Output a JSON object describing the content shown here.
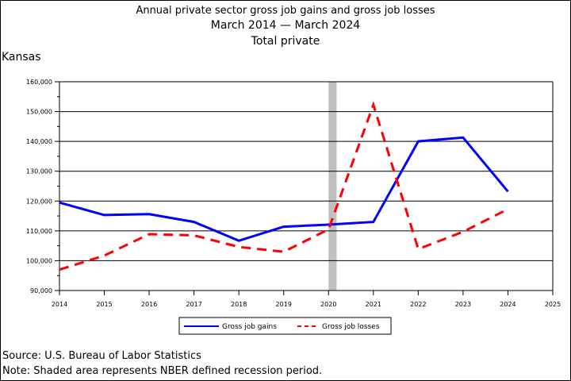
{
  "header": {
    "title": "Annual private sector gross job gains and gross job losses",
    "period": "March 2014 — March 2024",
    "subtitle": "Total private",
    "region": "Kansas"
  },
  "footer": {
    "source": "Source: U.S. Bureau of Labor Statistics",
    "note": "Note: Shaded area represents NBER defined recession period."
  },
  "chart_data": {
    "type": "line",
    "title": "Annual private sector gross job gains and gross job losses",
    "subtitle": "March 2014 — March 2024 / Total private",
    "x": [
      2014,
      2015,
      2016,
      2017,
      2018,
      2019,
      2020,
      2021,
      2022,
      2023,
      2024
    ],
    "x_ticks": [
      "2014",
      "2015",
      "2016",
      "2017",
      "2018",
      "2019",
      "2020",
      "2021",
      "2022",
      "2023",
      "2024",
      "2025"
    ],
    "xlim": [
      2014,
      2025
    ],
    "ylim": [
      90000,
      160000
    ],
    "y_ticks": [
      "90,000",
      "100,000",
      "110,000",
      "120,000",
      "130,000",
      "140,000",
      "150,000",
      "160,000"
    ],
    "grid": "horizontal",
    "legend": "bottom",
    "recession": {
      "start": 2020.0,
      "end": 2020.18
    },
    "series": [
      {
        "name": "Gross job gains",
        "color": "#0000ff",
        "dash": "solid",
        "values": [
          119500,
          115300,
          115600,
          113000,
          106700,
          111400,
          112100,
          113000,
          140000,
          141300,
          123200
        ]
      },
      {
        "name": "Gross job losses",
        "color": "#ff0000",
        "dash": "dashed",
        "values": [
          97000,
          101700,
          108900,
          108500,
          104600,
          103000,
          110500,
          152300,
          103900,
          109700,
          117300
        ]
      }
    ]
  }
}
